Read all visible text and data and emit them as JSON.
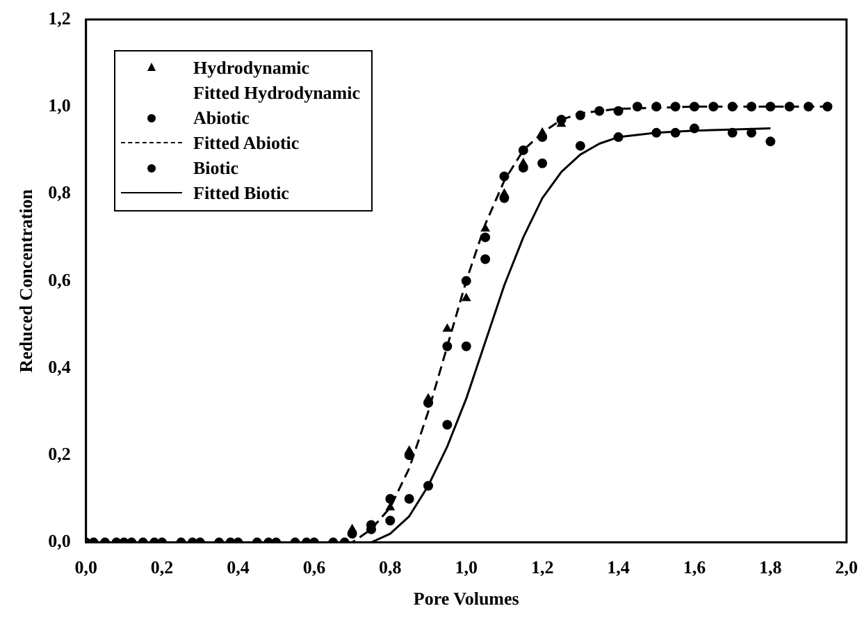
{
  "chart_data": {
    "type": "scatter",
    "xlabel": "Pore Volumes",
    "ylabel": "Reduced Concentration",
    "xlim": [
      0,
      2
    ],
    "ylim": [
      0,
      1.2
    ],
    "xticks": [
      {
        "value": 0,
        "label": "0,0"
      },
      {
        "value": 0.2,
        "label": "0,2"
      },
      {
        "value": 0.4,
        "label": "0,4"
      },
      {
        "value": 0.6,
        "label": "0,6"
      },
      {
        "value": 0.8,
        "label": "0,8"
      },
      {
        "value": 1,
        "label": "1,0"
      },
      {
        "value": 1.2,
        "label": "1,2"
      },
      {
        "value": 1.4,
        "label": "1,4"
      },
      {
        "value": 1.6,
        "label": "1,6"
      },
      {
        "value": 1.8,
        "label": "1,8"
      },
      {
        "value": 2,
        "label": "2,0"
      }
    ],
    "yticks": [
      {
        "value": 0,
        "label": "0,0"
      },
      {
        "value": 0.2,
        "label": "0,2"
      },
      {
        "value": 0.4,
        "label": "0,4"
      },
      {
        "value": 0.6,
        "label": "0,6"
      },
      {
        "value": 0.8,
        "label": "0,8"
      },
      {
        "value": 1,
        "label": "1,0"
      },
      {
        "value": 1.2,
        "label": "1,2"
      }
    ],
    "grid": false,
    "legend": "top left",
    "annotations": [
      "Fitted Hydrodynamic"
    ],
    "series": [
      {
        "name": "Hydrodynamic",
        "type": "scatter",
        "marker": "triangle",
        "color": "#000000",
        "x": [
          0.7,
          0.8,
          0.85,
          0.9,
          0.95,
          1.0,
          1.05,
          1.1,
          1.15,
          1.2,
          1.25
        ],
        "values": [
          0.03,
          0.08,
          0.21,
          0.33,
          0.49,
          0.56,
          0.72,
          0.8,
          0.87,
          0.94,
          0.96
        ]
      },
      {
        "name": "Abiotic",
        "type": "scatter",
        "marker": "circle",
        "color": "#000000",
        "x": [
          0,
          0.05,
          0.1,
          0.15,
          0.2,
          0.25,
          0.3,
          0.35,
          0.4,
          0.45,
          0.5,
          0.55,
          0.6,
          0.65,
          0.7,
          0.75,
          0.8,
          0.85,
          0.9,
          0.95,
          1.0,
          1.05,
          1.1,
          1.15,
          1.2,
          1.25,
          1.3,
          1.35,
          1.4,
          1.45,
          1.5,
          1.55,
          1.6,
          1.65,
          1.7,
          1.75,
          1.8,
          1.85,
          1.9,
          1.95
        ],
        "values": [
          0,
          0,
          0,
          0,
          0,
          0,
          0,
          0,
          0,
          0,
          0,
          0,
          0,
          0,
          0.02,
          0.04,
          0.1,
          0.2,
          0.32,
          0.45,
          0.6,
          0.7,
          0.84,
          0.9,
          0.93,
          0.97,
          0.98,
          0.99,
          0.99,
          1.0,
          1.0,
          1.0,
          1.0,
          1.0,
          1.0,
          1.0,
          1.0,
          1.0,
          1.0,
          1.0
        ]
      },
      {
        "name": "Fitted Abiotic",
        "type": "line",
        "marker": "none",
        "line_style": "dashed",
        "color": "#000000",
        "x": [
          0,
          0.7,
          0.75,
          0.8,
          0.85,
          0.9,
          0.95,
          1.0,
          1.05,
          1.1,
          1.15,
          1.2,
          1.25,
          1.3,
          1.4,
          1.6,
          1.95
        ],
        "values": [
          0,
          0,
          0.03,
          0.08,
          0.17,
          0.3,
          0.45,
          0.6,
          0.73,
          0.83,
          0.9,
          0.94,
          0.97,
          0.985,
          0.995,
          1.0,
          1.0
        ]
      },
      {
        "name": "Biotic",
        "type": "scatter",
        "marker": "circle",
        "color": "#000000",
        "x": [
          0.02,
          0.08,
          0.12,
          0.18,
          0.28,
          0.38,
          0.48,
          0.58,
          0.68,
          0.75,
          0.8,
          0.85,
          0.9,
          0.95,
          1.0,
          1.05,
          1.1,
          1.15,
          1.2,
          1.3,
          1.4,
          1.5,
          1.55,
          1.6,
          1.7,
          1.75,
          1.8
        ],
        "values": [
          0,
          0,
          0,
          0,
          0,
          0,
          0,
          0,
          0,
          0.03,
          0.05,
          0.1,
          0.13,
          0.27,
          0.45,
          0.65,
          0.79,
          0.86,
          0.87,
          0.91,
          0.93,
          0.94,
          0.94,
          0.95,
          0.94,
          0.94,
          0.92
        ]
      },
      {
        "name": "Fitted Biotic",
        "type": "line",
        "marker": "none",
        "line_style": "solid",
        "color": "#000000",
        "x": [
          0,
          0.75,
          0.8,
          0.85,
          0.9,
          0.95,
          1.0,
          1.05,
          1.1,
          1.15,
          1.2,
          1.25,
          1.3,
          1.35,
          1.4,
          1.5,
          1.6,
          1.8
        ],
        "values": [
          0,
          0,
          0.02,
          0.06,
          0.13,
          0.22,
          0.33,
          0.46,
          0.59,
          0.7,
          0.79,
          0.85,
          0.89,
          0.915,
          0.93,
          0.94,
          0.945,
          0.95
        ]
      }
    ]
  }
}
